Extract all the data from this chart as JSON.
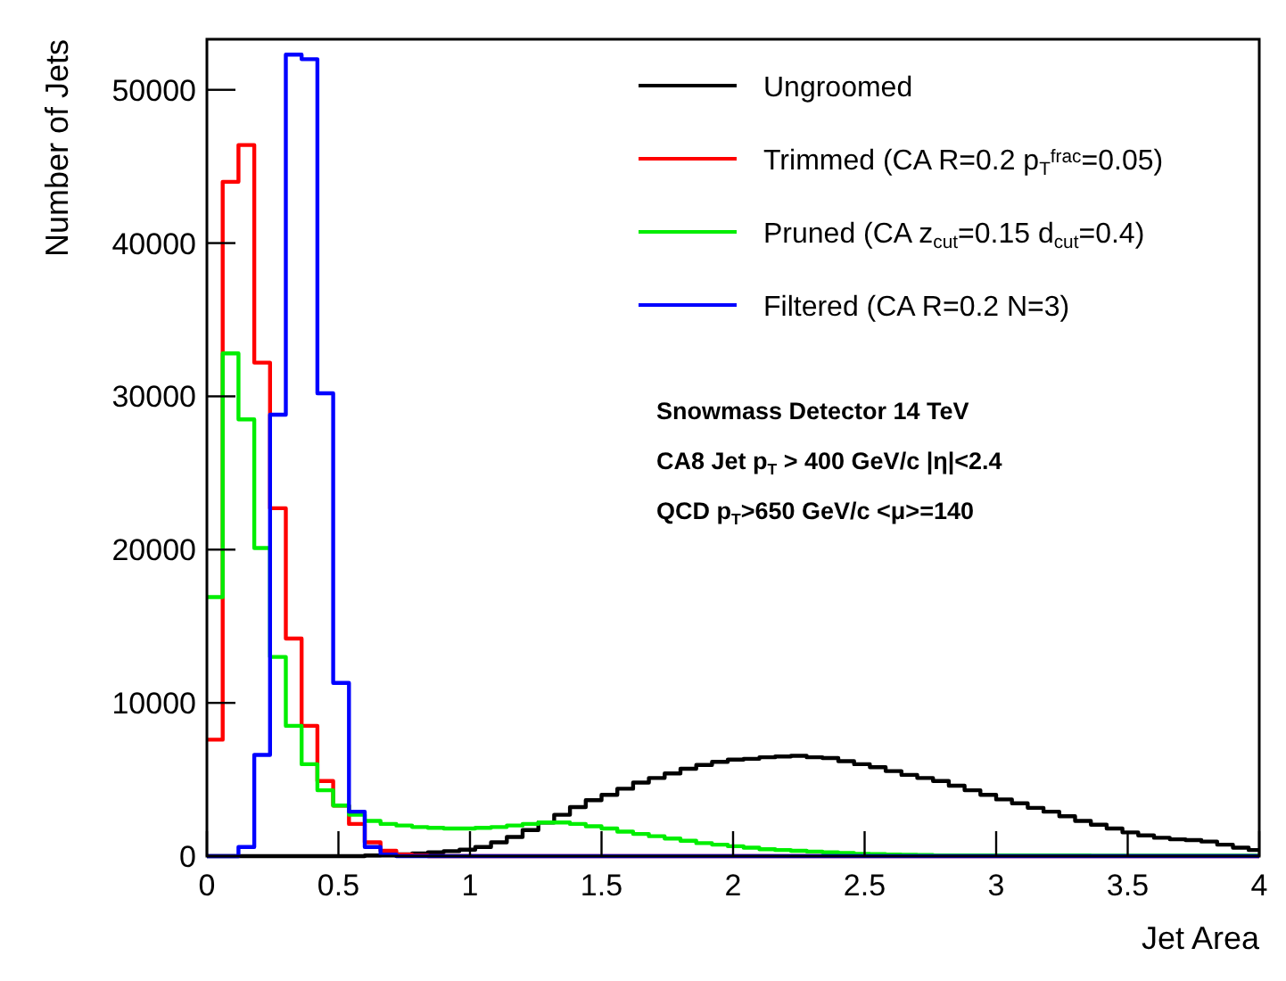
{
  "chart_data": {
    "type": "histogram",
    "xlabel": "Jet Area",
    "ylabel": "Number of Jets",
    "bins": [
      0,
      0.06,
      0.12,
      0.18,
      0.24,
      0.3,
      0.36,
      0.42,
      0.48,
      0.54,
      0.6,
      0.66,
      0.72,
      0.78,
      0.84,
      0.9,
      0.96,
      1.02,
      1.08,
      1.14,
      1.2,
      1.26,
      1.32,
      1.38,
      1.44,
      1.5,
      1.56,
      1.62,
      1.68,
      1.74,
      1.8,
      1.86,
      1.92,
      1.98,
      2.04,
      2.1,
      2.16,
      2.22,
      2.28,
      2.34,
      2.4,
      2.46,
      2.52,
      2.58,
      2.64,
      2.7,
      2.76,
      2.82,
      2.88,
      2.94,
      3,
      3.06,
      3.12,
      3.18,
      3.24,
      3.3,
      3.36,
      3.42,
      3.48,
      3.54,
      3.6,
      3.66,
      3.72,
      3.78,
      3.84,
      3.9,
      3.96,
      4
    ],
    "series": [
      {
        "name": "Ungroomed",
        "color": "#000000",
        "values": [
          0,
          0,
          0,
          0,
          0,
          0,
          0,
          0,
          0,
          0,
          50,
          80,
          120,
          180,
          250,
          330,
          420,
          600,
          900,
          1250,
          1700,
          2200,
          2700,
          3200,
          3650,
          4000,
          4400,
          4800,
          5100,
          5400,
          5700,
          5950,
          6150,
          6300,
          6350,
          6450,
          6500,
          6550,
          6450,
          6400,
          6200,
          6000,
          5800,
          5550,
          5300,
          5100,
          4900,
          4600,
          4300,
          4000,
          3700,
          3450,
          3150,
          2900,
          2600,
          2300,
          2050,
          1800,
          1550,
          1350,
          1200,
          1100,
          1050,
          950,
          750,
          550,
          400
        ]
      },
      {
        "name": "Trimmed (CA R=0.2 p$_{T}$$^{frac}$=0.05)",
        "color": "#ff0000",
        "values": [
          7600,
          44000,
          46400,
          32200,
          22700,
          14200,
          8500,
          4900,
          3300,
          2100,
          900,
          350,
          100,
          50,
          0,
          0,
          0,
          0,
          0,
          0,
          0,
          0,
          0,
          0,
          0,
          0,
          0,
          0,
          0,
          0,
          0,
          0,
          0,
          0,
          0,
          0,
          0,
          0,
          0,
          0,
          0,
          0,
          0,
          0,
          0,
          0,
          0,
          0,
          0,
          0,
          0,
          0,
          0,
          0,
          0,
          0,
          0,
          0,
          0,
          0,
          0,
          0,
          0,
          0,
          0,
          0,
          0
        ]
      },
      {
        "name": "Pruned (CA z$_{cut}$=0.15 d$_{cut}$=0.4)",
        "color": "#00ee00",
        "values": [
          16900,
          32800,
          28500,
          20100,
          13000,
          8500,
          6000,
          4300,
          3300,
          2700,
          2300,
          2100,
          2000,
          1900,
          1850,
          1800,
          1800,
          1850,
          1900,
          2000,
          2100,
          2200,
          2200,
          2100,
          1950,
          1800,
          1600,
          1450,
          1300,
          1150,
          1000,
          850,
          750,
          650,
          550,
          450,
          400,
          350,
          300,
          250,
          200,
          150,
          130,
          110,
          90,
          80,
          50,
          50,
          50,
          50,
          50,
          50,
          50,
          50,
          50,
          50,
          30,
          30,
          30,
          30,
          30,
          30,
          30,
          30,
          30,
          30,
          30
        ]
      },
      {
        "name": "Filtered (CA R=0.2 N=3)",
        "color": "#0000ff",
        "values": [
          0,
          0,
          600,
          6600,
          28800,
          52300,
          52000,
          30200,
          11300,
          2900,
          600,
          100,
          0,
          0,
          0,
          0,
          0,
          0,
          0,
          0,
          0,
          0,
          0,
          0,
          0,
          0,
          0,
          0,
          0,
          0,
          0,
          0,
          0,
          0,
          0,
          0,
          0,
          0,
          0,
          0,
          0,
          0,
          0,
          0,
          0,
          0,
          0,
          0,
          0,
          0,
          0,
          0,
          0,
          0,
          0,
          0,
          0,
          0,
          0,
          0,
          0,
          0,
          0,
          0,
          0,
          0,
          0
        ]
      }
    ],
    "xlim": [
      0,
      4
    ],
    "ylim": [
      0,
      53300
    ],
    "xticks": [
      0,
      0.5,
      1,
      1.5,
      2,
      2.5,
      3,
      3.5,
      4
    ],
    "yticks": [
      0,
      10000,
      20000,
      30000,
      40000,
      50000
    ],
    "legend": "top right",
    "grid": false,
    "annotations": [
      "Snowmass Detector 14 TeV",
      "CA8 Jet p$_{T}$ > 400 GeV/c  |η|<2.4",
      "QCD p$_{T}$>650 GeV/c <μ>=140"
    ]
  }
}
